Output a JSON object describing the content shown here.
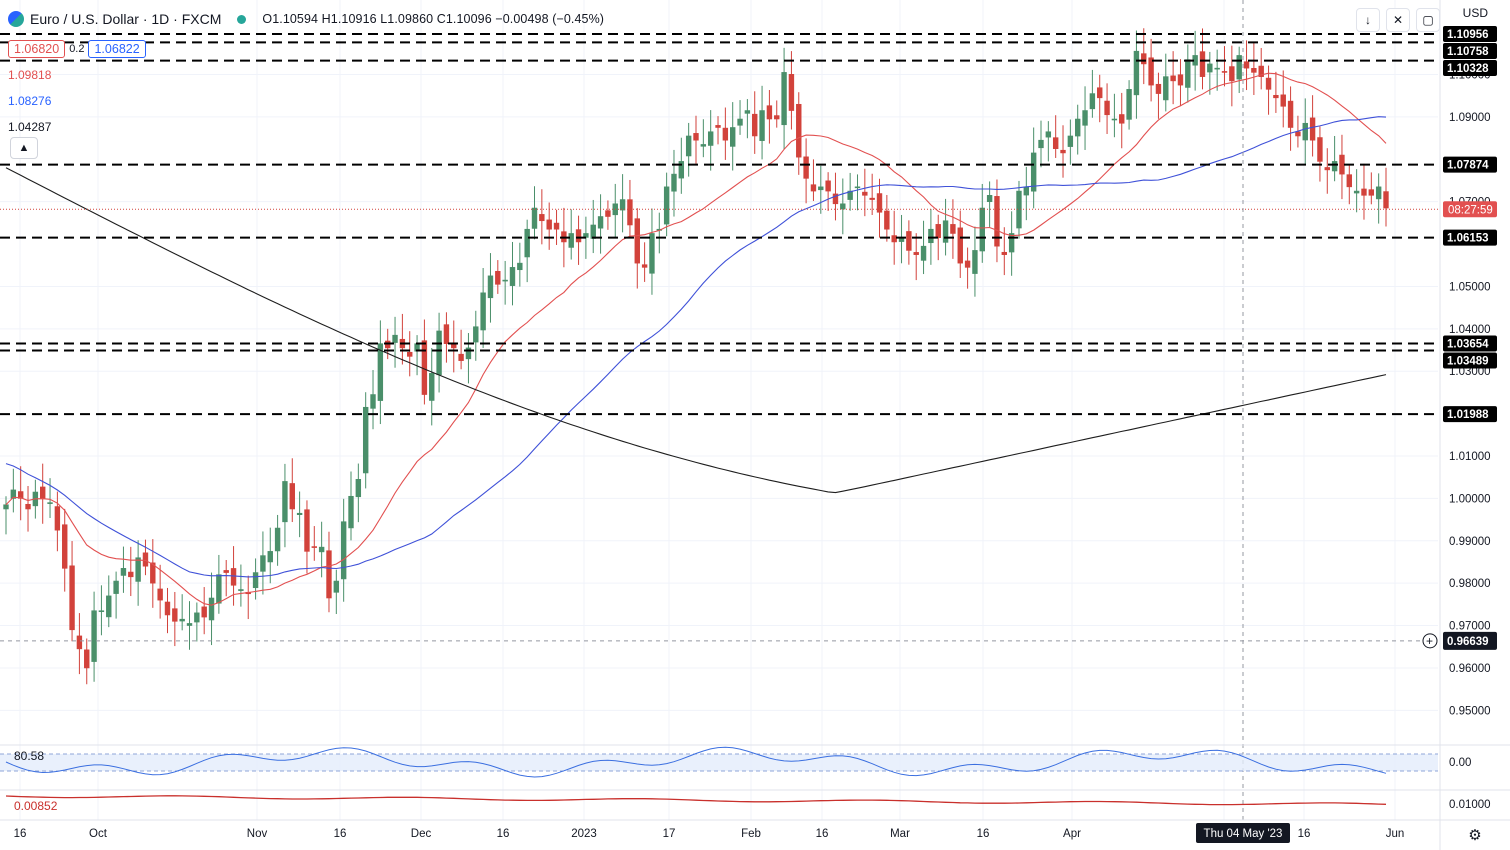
{
  "header": {
    "title": "Euro / U.S. Dollar · 1D · FXCM",
    "ohlc": "O1.10594  H1.10916  L1.09860  C1.10096  −0.00498 (−0.45%)",
    "currency": "USD"
  },
  "legend": {
    "ma_box_1": "1.06820",
    "ma_mid": "0.2",
    "ma_box_2": "1.06822",
    "ma_red": "1.09818",
    "ma_blue": "1.08276",
    "ma_black": "1.04287"
  },
  "top_right_buttons": [
    "↓",
    "✕",
    "▢"
  ],
  "colors": {
    "up": "#4a8f6a",
    "down": "#d2423b",
    "ma_fast": "#e25050",
    "ma_mid": "#3f51d8",
    "ma_slow": "#1e1e1e",
    "osc_line": "#3b6fe0",
    "osc2_line": "#c9302c"
  },
  "chart_data": {
    "type": "candlestick",
    "symbol": "EURUSD",
    "y_axis_ticks": [
      "1.10000",
      "1.09000",
      "1.07000",
      "1.05000",
      "1.04000",
      "1.03000",
      "1.01000",
      "1.00000",
      "0.99000",
      "0.98000",
      "0.97000",
      "0.96000",
      "0.95000"
    ],
    "ylim": [
      0.943,
      1.1105
    ],
    "x_axis_ticks": [
      "16",
      "Oct",
      "Nov",
      "16",
      "Dec",
      "16",
      "2023",
      "17",
      "Feb",
      "16",
      "Mar",
      "16",
      "Apr",
      "16",
      "16",
      "Jun"
    ],
    "crosshair_date": "Thu 04 May '23",
    "current_price_tag": "08:27:59",
    "current_price": 1.0682,
    "crosshair_price": "0.96639",
    "horizontal_levels": [
      1.10956,
      1.10758,
      1.10328,
      1.07874,
      1.06153,
      1.03654,
      1.03489,
      1.01988
    ],
    "horizontal_level_labels": [
      "1.10956",
      "1.10758",
      "1.10328",
      "1.07874",
      "1.06153",
      "1.03654",
      "1.03489",
      "1.01988"
    ],
    "candles_close": [
      0.9985,
      1.002,
      1.0,
      0.9975,
      1.0015,
      1.0,
      0.999,
      0.9925,
      0.9835,
      0.969,
      0.9645,
      0.96,
      0.9735,
      0.9735,
      0.977,
      0.9805,
      0.9835,
      0.9815,
      0.986,
      0.984,
      0.98,
      0.976,
      0.9725,
      0.971,
      0.9715,
      0.9705,
      0.973,
      0.972,
      0.9765,
      0.982,
      0.9825,
      0.9795,
      0.9785,
      0.9775,
      0.9825,
      0.9865,
      0.9875,
      0.993,
      1.004,
      0.9975,
      0.9965,
      0.9875,
      0.9885,
      0.9885,
      0.9765,
      0.9805,
      0.9945,
      1.0005,
      1.0045,
      1.0215,
      1.0245,
      1.0365,
      1.0355,
      1.0385,
      1.0355,
      1.0335,
      1.0365,
      1.0245,
      1.0295,
      1.0395,
      1.0365,
      1.0355,
      1.0325,
      1.0355,
      1.0405,
      1.0485,
      1.0525,
      1.0505,
      1.0515,
      1.0545,
      1.0555,
      1.0635,
      1.0685,
      1.0655,
      1.0635,
      1.0635,
      1.0605,
      1.0625,
      1.0605,
      1.0625,
      1.0645,
      1.0665,
      1.0665,
      1.0695,
      1.0705,
      1.0645,
      1.0555,
      1.0545,
      1.0625,
      1.0635,
      1.0735,
      1.0765,
      1.0795,
      1.0855,
      1.0845,
      1.0835,
      1.0865,
      1.0875,
      1.0845,
      1.0875,
      1.0895,
      1.0915,
      1.0855,
      1.0915,
      1.0895,
      1.0895,
      1.1005,
      1.0915,
      1.0805,
      1.0755,
      1.0725,
      1.0735,
      1.0725,
      1.0695,
      1.0695,
      1.0725,
      1.0735,
      1.0715,
      1.0705,
      1.0675,
      1.0635,
      1.0605,
      1.0615,
      1.0585,
      1.0575,
      1.0595,
      1.0635,
      1.0615,
      1.0655,
      1.0625,
      1.0555,
      1.0545,
      1.0585,
      1.0685,
      1.0715,
      1.0595,
      1.0575,
      1.0625,
      1.0725,
      1.0735,
      1.0815,
      1.0845,
      1.0865,
      1.0825,
      1.0815,
      1.0855,
      1.0895,
      1.0915,
      1.0955,
      1.0945,
      1.0905,
      1.0895,
      1.0885,
      1.0965,
      1.1055,
      1.1025,
      1.0975,
      1.0955,
      1.0995,
      1.0985,
      1.0975,
      1.1035,
      1.1045,
      1.0995,
      1.1025,
      1.1015,
      1.1005,
      1.0985,
      1.1045,
      1.1015,
      1.1005,
      1.0995,
      1.0965,
      1.0945,
      1.0925,
      1.0875,
      1.0855,
      1.0885,
      1.0845,
      1.0795,
      1.0775,
      1.0795,
      1.0765,
      1.0735,
      1.0725,
      1.0715,
      1.0715,
      1.0735,
      1.0685
    ]
  }
}
